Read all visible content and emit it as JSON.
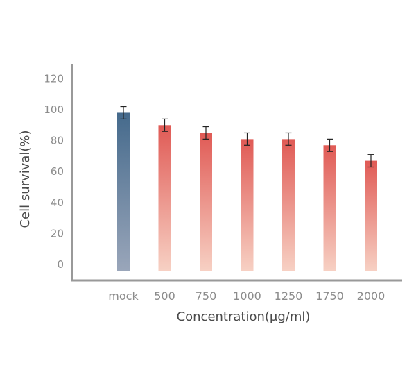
{
  "chart_data": {
    "type": "bar",
    "title": "",
    "xlabel": "Concentration(μg/ml)",
    "ylabel": "Cell survival(%)",
    "categories": [
      "mock",
      "500",
      "750",
      "1000",
      "1250",
      "1750",
      "2000"
    ],
    "values": [
      98,
      90,
      85,
      81,
      81,
      77,
      67
    ],
    "errors": [
      4,
      4,
      4,
      4,
      4,
      4,
      4
    ],
    "ylim": [
      -4,
      131
    ],
    "yticks": [
      0,
      20,
      40,
      60,
      80,
      100,
      120
    ],
    "y_tick_labels": [
      "0",
      "20",
      "40",
      "60",
      "80",
      "100",
      "120"
    ],
    "grid": false,
    "legend": "none",
    "colors": {
      "control_top": "#456a8c",
      "control_bottom": "#9aa6ba",
      "treatment_top": "#e05a55",
      "treatment_bottom": "#f7d1c4",
      "axis": "#999999",
      "error_bar": "#222222"
    }
  }
}
